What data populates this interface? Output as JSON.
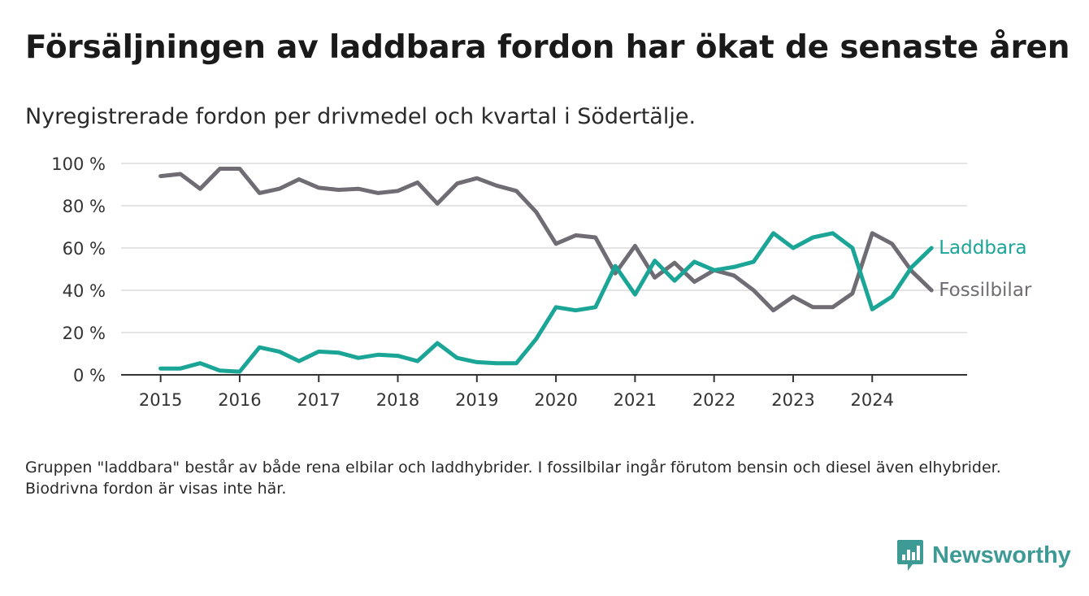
{
  "header": {
    "title": "Försäljningen av laddbara fordon har ökat de senaste åren",
    "subtitle": "Nyregistrerade fordon per drivmedel och kvartal i Södertälje."
  },
  "footnote": "Gruppen \"laddbara\" består av både rena elbilar och laddhybrider. I fossilbilar ingår förutom bensin och diesel även elhybrider. Biodrivna fordon är visas inte här.",
  "brand": {
    "name": "Newsworthy",
    "icon": "newsworthy-logo-icon",
    "color": "#3e9a94"
  },
  "chart_data": {
    "type": "line",
    "title": "Försäljningen av laddbara fordon har ökat de senaste åren",
    "subtitle": "Nyregistrerade fordon per drivmedel och kvartal i Södertälje.",
    "xlabel": "",
    "ylabel": "",
    "x_start": 2015,
    "x_step": 0.25,
    "xlim": [
      2014.5,
      2025.2
    ],
    "ylim": [
      0,
      100
    ],
    "x_ticks": [
      2015,
      2016,
      2017,
      2018,
      2019,
      2020,
      2021,
      2022,
      2023,
      2024
    ],
    "y_ticks": [
      0,
      20,
      40,
      60,
      80,
      100
    ],
    "y_tick_suffix": " %",
    "grid": "horizontal",
    "legend": "direct labels at line ends",
    "series": [
      {
        "name": "Fossilbilar",
        "color": "#6f6d73",
        "values": [
          94,
          95,
          88,
          97.5,
          97.5,
          86,
          88,
          92.5,
          88.5,
          87.5,
          88,
          86,
          87,
          91,
          81,
          90.5,
          93,
          89.5,
          87,
          77,
          62,
          66,
          65,
          48,
          61,
          46,
          53,
          44,
          49.5,
          47,
          40,
          30.5,
          37,
          32,
          32,
          38.5,
          67,
          62,
          49,
          40
        ]
      },
      {
        "name": "Laddbara",
        "color": "#1aa597",
        "values": [
          3,
          3,
          5.5,
          2,
          1.5,
          13,
          11,
          6.5,
          11,
          10.5,
          8,
          9.5,
          9,
          6.5,
          15,
          8,
          6,
          5.5,
          5.5,
          17,
          32,
          30.5,
          32,
          51.5,
          38,
          54,
          44.5,
          53.5,
          49.5,
          51,
          53.5,
          67,
          60,
          65,
          67,
          60,
          31,
          37,
          51,
          60
        ]
      }
    ]
  }
}
